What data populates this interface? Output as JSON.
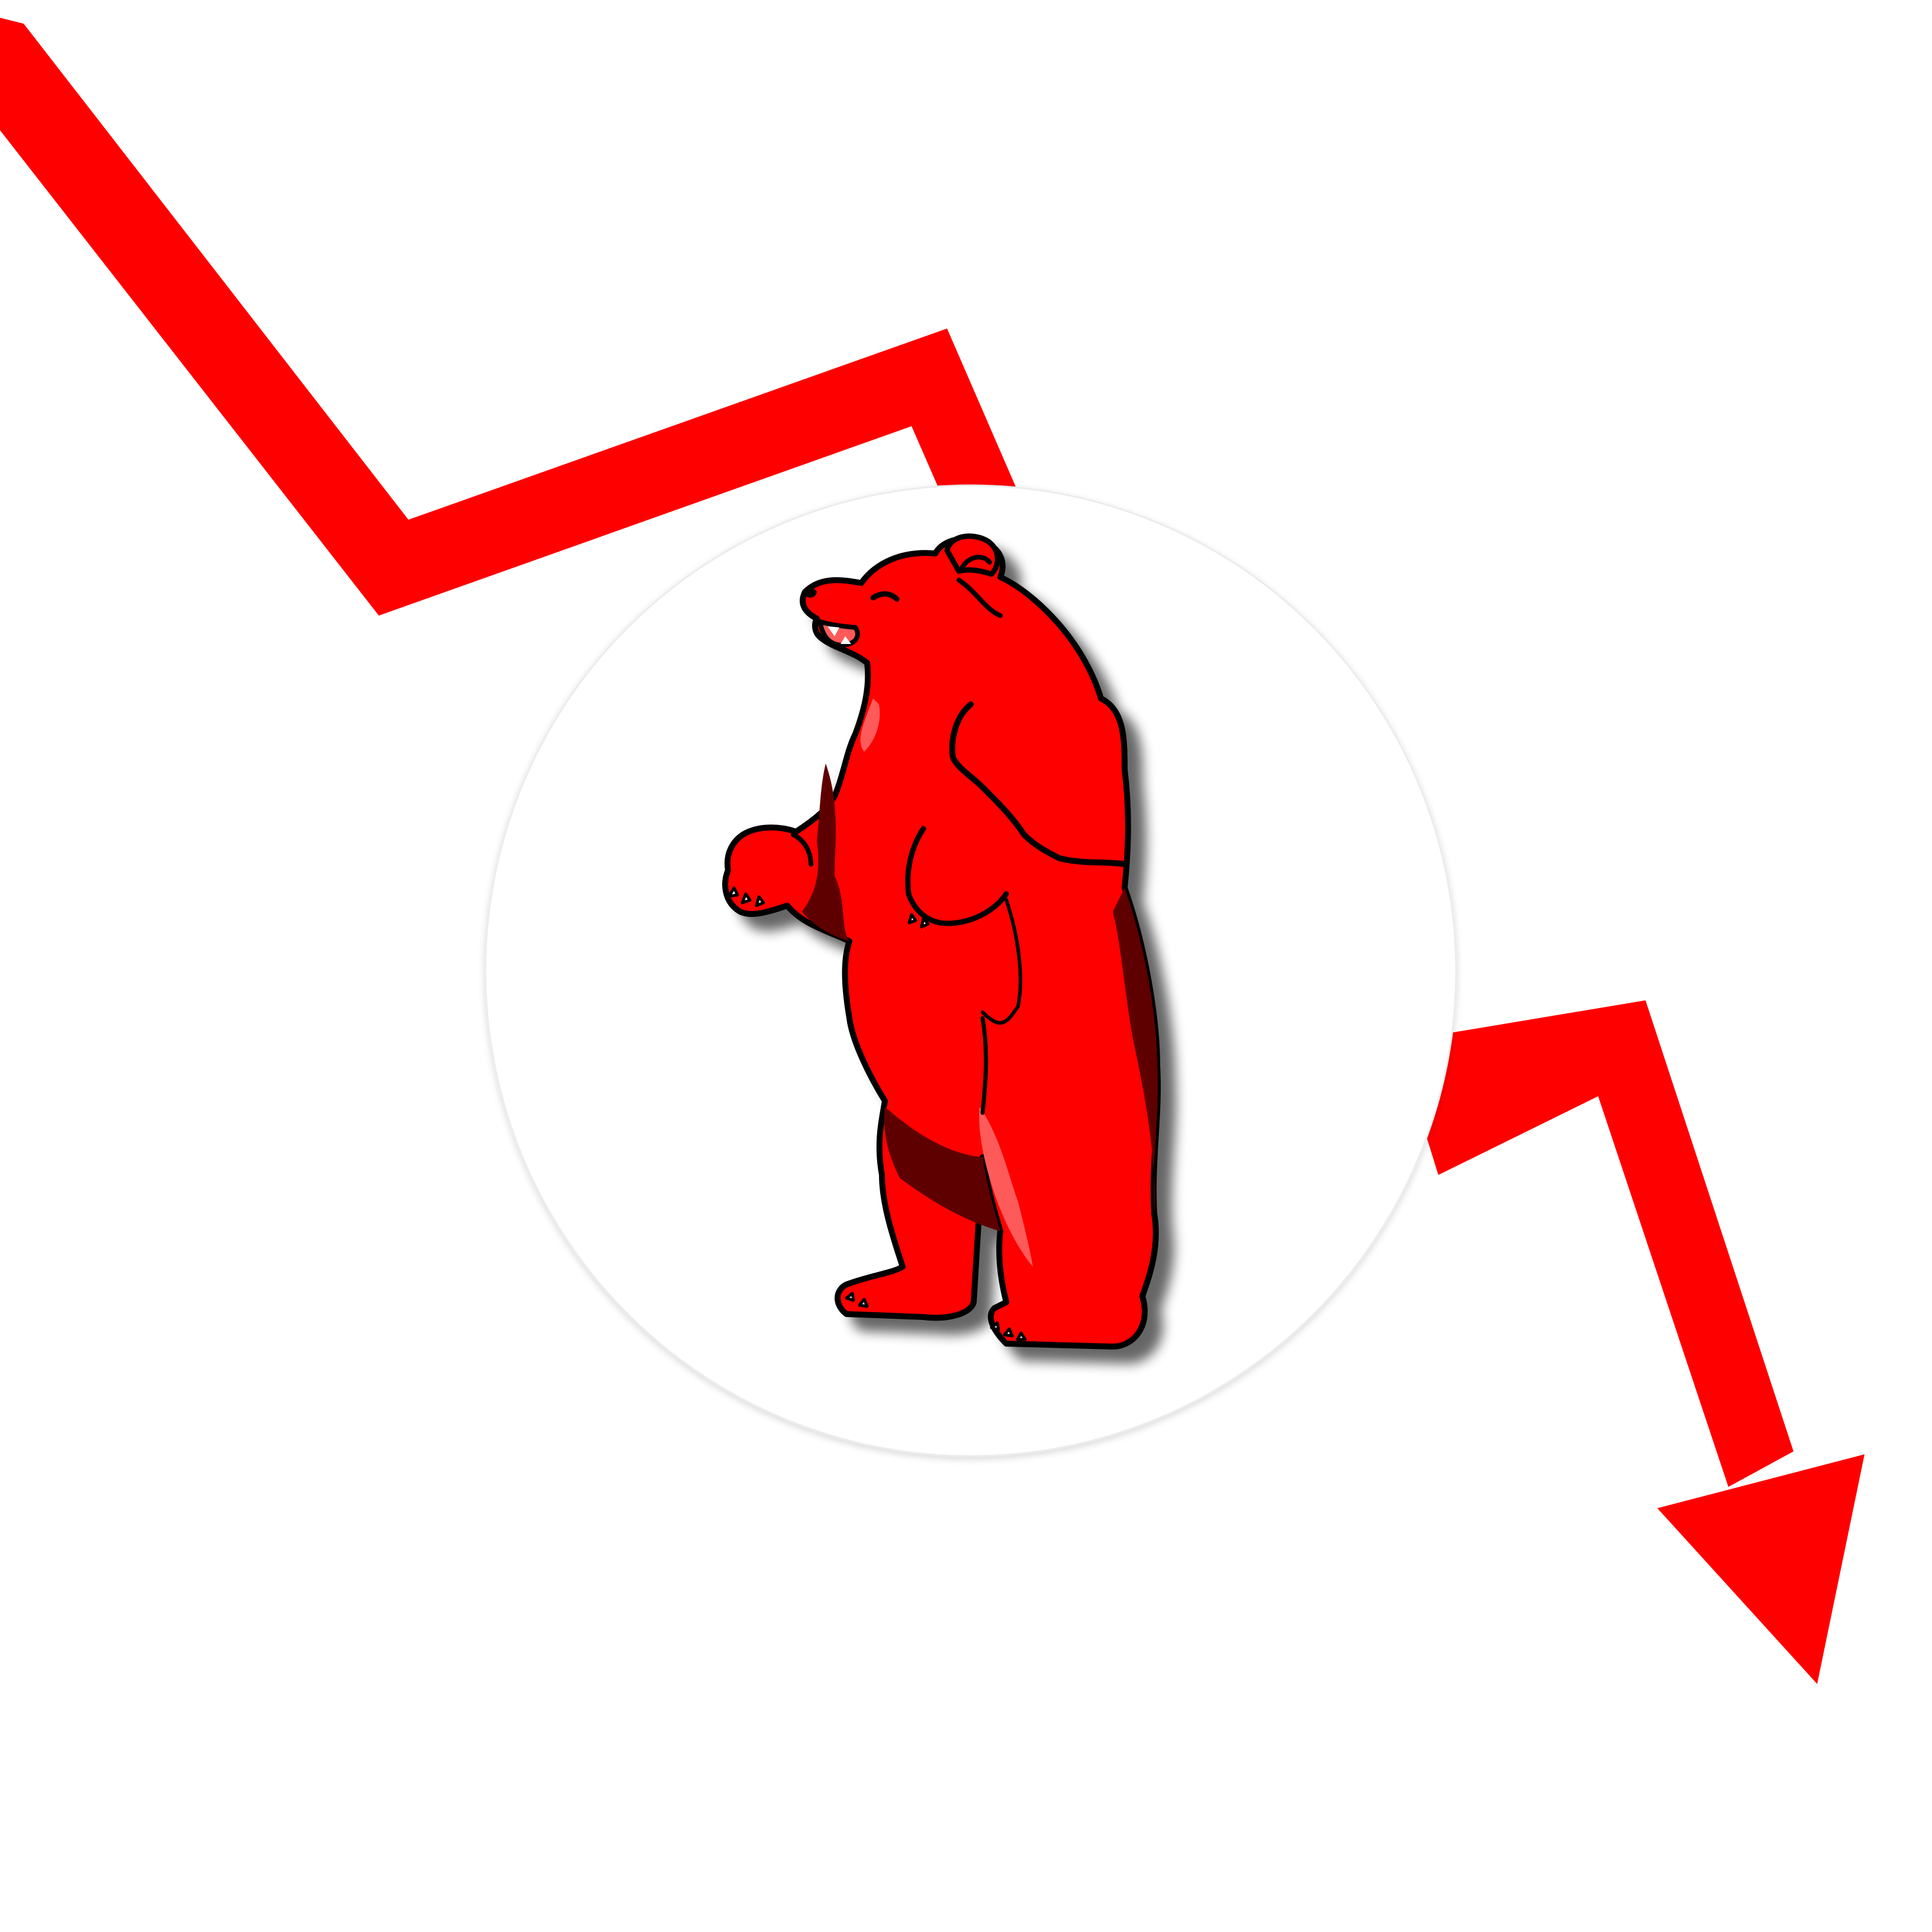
{
  "illustration": {
    "subject": "standing-red-bear",
    "trend": "downward",
    "icons": {
      "trend_arrow": "downtrend-arrow-icon",
      "badge": "circle-badge",
      "bear": "bear-icon"
    },
    "colors": {
      "background": "#ffffff",
      "arrow": "#ff0000",
      "badge": "#ffffff",
      "badge_edge": "#ececec",
      "bear_fill": "#ff0000",
      "bear_outline": "#000000",
      "bear_dark_fur": "#5e0000",
      "bear_light_fur": "#ff5a5a",
      "drop_shadow": "#000000"
    }
  }
}
